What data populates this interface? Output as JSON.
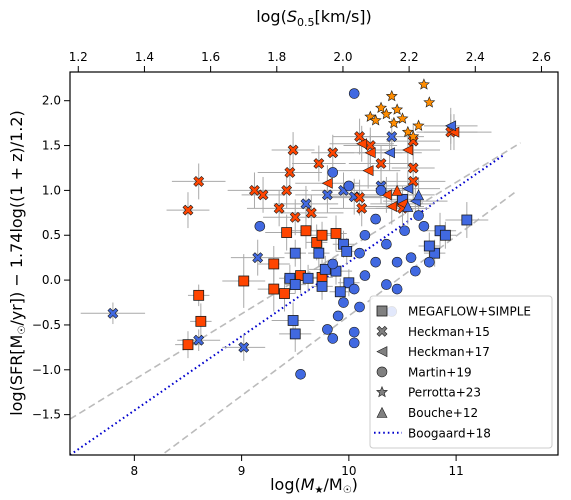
{
  "chart_data": {
    "type": "scatter",
    "title": "",
    "xlabel": "log(M★/M⊙)",
    "ylabel": "log(SFR[M⊙/yr]) − 1.74log((1 + z)/1.2)",
    "top_xlabel": "log(S0.5[km/s])",
    "xlim": [
      7.4,
      11.95
    ],
    "ylim": [
      -1.95,
      2.32
    ],
    "top_xlim": [
      1.175,
      2.65
    ],
    "x_ticks": [
      "8",
      "9",
      "10",
      "11"
    ],
    "top_x_ticks": [
      "1.2",
      "1.4",
      "1.6",
      "1.8",
      "2.0",
      "2.2",
      "2.4",
      "2.6"
    ],
    "y_ticks": [
      "−1.5",
      "−1.0",
      "−0.5",
      "0.0",
      "0.5",
      "1.0",
      "1.5",
      "2.0"
    ],
    "legend_position": "lower right",
    "colors": {
      "blue": "#4169e1",
      "red": "#ff4500",
      "orange": "#ff8c00",
      "errorbar": "#a9a9a9",
      "line_gray": "#bbbbbb",
      "line_blue": "#0000cd"
    },
    "lines": [
      {
        "name": "Boogaard+18",
        "style": "dotted",
        "x": [
          7.4,
          11.45
        ],
        "y": [
          -1.95,
          1.4
        ]
      },
      {
        "name": "",
        "style": "dashed",
        "x": [
          7.4,
          11.6
        ],
        "y": [
          -1.55,
          1.53
        ]
      },
      {
        "name": "",
        "style": "dashed",
        "x": [
          8.2,
          11.55
        ],
        "y": [
          -2.0,
          0.98
        ]
      }
    ],
    "series": [
      {
        "name": "MEGAFLOW+SIMPLE",
        "marker": "square",
        "points": [
          {
            "x": 8.5,
            "y": -0.72,
            "c": "red",
            "xe": 0.12,
            "ye": 0.15
          },
          {
            "x": 8.6,
            "y": -0.17,
            "c": "red",
            "xe": 0.1,
            "ye": 0.12
          },
          {
            "x": 8.62,
            "y": -0.46,
            "c": "red",
            "xe": 0.1,
            "ye": 0.2
          },
          {
            "x": 9.02,
            "y": -0.01,
            "c": "red",
            "xe": 0.2,
            "ye": 0.3
          },
          {
            "x": 9.3,
            "y": -0.1,
            "c": "red",
            "xe": 0.15,
            "ye": 0.25
          },
          {
            "x": 9.4,
            "y": -0.15,
            "c": "red",
            "xe": 0.1,
            "ye": 0.2
          },
          {
            "x": 9.3,
            "y": 0.18,
            "c": "red",
            "xe": 0.15,
            "ye": 0.2
          },
          {
            "x": 9.42,
            "y": 0.53,
            "c": "red",
            "xe": 0.2,
            "ye": 0.2
          },
          {
            "x": 9.6,
            "y": 0.55,
            "c": "red",
            "xe": 0.2,
            "ye": 0.2
          },
          {
            "x": 9.55,
            "y": 0.05,
            "c": "red",
            "xe": 0.1,
            "ye": 0.2
          },
          {
            "x": 9.7,
            "y": 0.42,
            "c": "red",
            "xe": 0.1,
            "ye": 0.2
          },
          {
            "x": 9.75,
            "y": 0.5,
            "c": "red",
            "xe": 0.1,
            "ye": 0.15
          },
          {
            "x": 9.75,
            "y": 0.03,
            "c": "red",
            "xe": 0.1,
            "ye": 0.2
          },
          {
            "x": 9.88,
            "y": 0.52,
            "c": "red",
            "xe": 0.1,
            "ye": 0.2
          },
          {
            "x": 9.48,
            "y": -0.45,
            "c": "blue",
            "xe": 0.2,
            "ye": 0.2
          },
          {
            "x": 9.5,
            "y": 0.3,
            "c": "blue",
            "xe": 0.1,
            "ye": 0.15
          },
          {
            "x": 9.45,
            "y": 0.02,
            "c": "blue",
            "xe": 0.1,
            "ye": 0.15
          },
          {
            "x": 9.5,
            "y": -0.05,
            "c": "blue",
            "xe": 0.1,
            "ye": 0.1
          },
          {
            "x": 9.62,
            "y": 0.02,
            "c": "blue",
            "xe": 0.1,
            "ye": 0.15
          },
          {
            "x": 9.72,
            "y": 0.3,
            "c": "blue",
            "xe": 0.1,
            "ye": 0.15
          },
          {
            "x": 9.78,
            "y": 0.12,
            "c": "blue",
            "xe": 0.15,
            "ye": 0.15
          },
          {
            "x": 9.88,
            "y": 0.1,
            "c": "blue",
            "xe": 0.15,
            "ye": 0.15
          },
          {
            "x": 9.95,
            "y": 0.4,
            "c": "blue",
            "xe": 0.1,
            "ye": 0.15
          },
          {
            "x": 9.98,
            "y": 0.32,
            "c": "blue",
            "xe": 0.1,
            "ye": 0.15
          },
          {
            "x": 9.75,
            "y": -0.07,
            "c": "blue",
            "xe": 0.1,
            "ye": 0.15
          },
          {
            "x": 10.0,
            "y": -0.03,
            "c": "blue",
            "xe": 0.1,
            "ye": 0.15
          },
          {
            "x": 9.92,
            "y": -0.13,
            "c": "blue",
            "xe": 0.1,
            "ye": 0.15
          },
          {
            "x": 9.5,
            "y": -0.6,
            "c": "blue",
            "xe": 0.15,
            "ye": 0.2
          },
          {
            "x": 10.5,
            "y": 0.9,
            "c": "blue",
            "xe": 0.1,
            "ye": 0.15
          },
          {
            "x": 10.8,
            "y": 0.3,
            "c": "blue",
            "xe": 0.1,
            "ye": 0.15
          },
          {
            "x": 10.75,
            "y": 0.38,
            "c": "blue",
            "xe": 0.1,
            "ye": 0.15
          },
          {
            "x": 10.85,
            "y": 0.55,
            "c": "blue",
            "xe": 0.15,
            "ye": 0.2
          },
          {
            "x": 10.9,
            "y": 0.5,
            "c": "blue",
            "xe": 0.1,
            "ye": 0.15
          },
          {
            "x": 11.1,
            "y": 0.67,
            "c": "blue",
            "xe": 0.2,
            "ye": 0.2
          }
        ]
      },
      {
        "name": "Heckman+15",
        "marker": "x",
        "points": [
          {
            "x": 7.8,
            "y": -0.37,
            "c": "blue",
            "xe": 0.3,
            "ye": 0.12
          },
          {
            "x": 8.6,
            "y": -0.67,
            "c": "blue",
            "xe": 0.2,
            "ye": 0.12
          },
          {
            "x": 9.02,
            "y": -0.75,
            "c": "blue",
            "xe": 0.2,
            "ye": 0.15
          },
          {
            "x": 8.6,
            "y": 1.1,
            "c": "red",
            "xe": 0.25,
            "ye": 0.2
          },
          {
            "x": 8.5,
            "y": 0.78,
            "c": "red",
            "xe": 0.2,
            "ye": 0.2
          },
          {
            "x": 9.12,
            "y": 1.0,
            "c": "red",
            "xe": 0.25,
            "ye": 0.2
          },
          {
            "x": 9.15,
            "y": 0.25,
            "c": "blue",
            "xe": 0.25,
            "ye": 0.2
          },
          {
            "x": 9.2,
            "y": 0.95,
            "c": "red",
            "xe": 0.2,
            "ye": 0.2
          },
          {
            "x": 9.35,
            "y": 0.8,
            "c": "red",
            "xe": 0.3,
            "ye": 0.2
          },
          {
            "x": 9.42,
            "y": 1.0,
            "c": "red",
            "xe": 0.2,
            "ye": 0.2
          },
          {
            "x": 9.45,
            "y": 1.2,
            "c": "red",
            "xe": 0.3,
            "ye": 0.2
          },
          {
            "x": 9.5,
            "y": 0.7,
            "c": "red",
            "xe": 0.3,
            "ye": 0.2
          },
          {
            "x": 9.48,
            "y": 1.45,
            "c": "red",
            "xe": 0.2,
            "ye": 0.2
          },
          {
            "x": 9.6,
            "y": 0.85,
            "c": "blue",
            "xe": 0.3,
            "ye": 0.2
          },
          {
            "x": 9.65,
            "y": 0.75,
            "c": "red",
            "xe": 0.3,
            "ye": 0.2
          },
          {
            "x": 9.72,
            "y": 1.3,
            "c": "red",
            "xe": 0.25,
            "ye": 0.2
          },
          {
            "x": 9.8,
            "y": 0.95,
            "c": "blue",
            "xe": 0.3,
            "ye": 0.2
          },
          {
            "x": 9.85,
            "y": 1.42,
            "c": "red",
            "xe": 0.2,
            "ye": 0.2
          },
          {
            "x": 9.95,
            "y": 1.0,
            "c": "blue",
            "xe": 0.3,
            "ye": 0.2
          },
          {
            "x": 10.05,
            "y": 0.93,
            "c": "blue",
            "xe": 0.25,
            "ye": 0.2
          },
          {
            "x": 10.1,
            "y": 1.6,
            "c": "red",
            "xe": 0.25,
            "ye": 0.2
          },
          {
            "x": 10.12,
            "y": 0.8,
            "c": "red",
            "xe": 0.3,
            "ye": 0.2
          },
          {
            "x": 10.2,
            "y": 1.5,
            "c": "red",
            "xe": 0.25,
            "ye": 0.2
          },
          {
            "x": 10.3,
            "y": 1.3,
            "c": "red",
            "xe": 0.3,
            "ye": 0.2
          },
          {
            "x": 10.3,
            "y": 1.05,
            "c": "blue",
            "xe": 0.3,
            "ye": 0.2
          },
          {
            "x": 10.4,
            "y": 1.6,
            "c": "blue",
            "xe": 0.3,
            "ye": 0.2
          },
          {
            "x": 10.5,
            "y": 0.8,
            "c": "red",
            "xe": 0.25,
            "ye": 0.2
          },
          {
            "x": 10.6,
            "y": 1.1,
            "c": "red",
            "xe": 0.3,
            "ye": 0.2
          },
          {
            "x": 10.6,
            "y": 1.55,
            "c": "red",
            "xe": 0.25,
            "ye": 0.2
          },
          {
            "x": 10.6,
            "y": 1.25,
            "c": "red",
            "xe": 0.2,
            "ye": 0.2
          },
          {
            "x": 10.95,
            "y": 1.65,
            "c": "red",
            "xe": 0.25,
            "ye": 0.2
          },
          {
            "x": 10.1,
            "y": 0.92,
            "c": "red",
            "xe": 0.25,
            "ye": 0.2
          }
        ]
      },
      {
        "name": "Heckman+17",
        "marker": "triangle-left",
        "points": [
          {
            "x": 9.8,
            "y": 1.08,
            "c": "red",
            "xe": 0.3,
            "ye": 0.2
          },
          {
            "x": 10.12,
            "y": 1.52,
            "c": "red",
            "xe": 0.3,
            "ye": 0.2
          },
          {
            "x": 10.2,
            "y": 1.42,
            "c": "red",
            "xe": 0.3,
            "ye": 0.2
          },
          {
            "x": 10.18,
            "y": 1.22,
            "c": "red",
            "xe": 0.3,
            "ye": 0.2
          },
          {
            "x": 10.35,
            "y": 0.95,
            "c": "red",
            "xe": 0.3,
            "ye": 0.2
          },
          {
            "x": 10.4,
            "y": 0.82,
            "c": "red",
            "xe": 0.3,
            "ye": 0.2
          },
          {
            "x": 10.38,
            "y": 1.42,
            "c": "blue",
            "xe": 0.3,
            "ye": 0.2
          },
          {
            "x": 10.5,
            "y": 0.85,
            "c": "red",
            "xe": 0.3,
            "ye": 0.2
          },
          {
            "x": 10.55,
            "y": 1.45,
            "c": "red",
            "xe": 0.3,
            "ye": 0.2
          },
          {
            "x": 10.55,
            "y": 1.02,
            "c": "blue",
            "xe": 0.3,
            "ye": 0.2
          },
          {
            "x": 10.62,
            "y": 0.88,
            "c": "blue",
            "xe": 0.3,
            "ye": 0.2
          },
          {
            "x": 10.98,
            "y": 1.65,
            "c": "red",
            "xe": 0.35,
            "ye": 0.2
          },
          {
            "x": 10.95,
            "y": 1.72,
            "c": "blue",
            "xe": 0.25,
            "ye": 0.2
          }
        ]
      },
      {
        "name": "Martin+19",
        "marker": "circle",
        "points": [
          {
            "x": 9.17,
            "y": 0.6,
            "c": "blue"
          },
          {
            "x": 9.55,
            "y": -1.05,
            "c": "blue"
          },
          {
            "x": 9.8,
            "y": -0.55,
            "c": "blue"
          },
          {
            "x": 9.85,
            "y": -0.65,
            "c": "blue"
          },
          {
            "x": 9.9,
            "y": -0.4,
            "c": "blue"
          },
          {
            "x": 9.95,
            "y": -0.25,
            "c": "blue"
          },
          {
            "x": 10.05,
            "y": -0.7,
            "c": "blue"
          },
          {
            "x": 10.05,
            "y": -0.58,
            "c": "blue"
          },
          {
            "x": 10.05,
            "y": -0.1,
            "c": "blue"
          },
          {
            "x": 10.1,
            "y": -0.3,
            "c": "blue"
          },
          {
            "x": 10.15,
            "y": 0.05,
            "c": "blue"
          },
          {
            "x": 10.1,
            "y": 0.3,
            "c": "blue"
          },
          {
            "x": 10.15,
            "y": 0.5,
            "c": "blue"
          },
          {
            "x": 10.25,
            "y": 0.2,
            "c": "blue"
          },
          {
            "x": 10.25,
            "y": 0.68,
            "c": "blue"
          },
          {
            "x": 10.3,
            "y": 1.0,
            "c": "blue"
          },
          {
            "x": 10.35,
            "y": 0.4,
            "c": "blue"
          },
          {
            "x": 10.35,
            "y": -0.05,
            "c": "blue"
          },
          {
            "x": 10.45,
            "y": 0.2,
            "c": "blue"
          },
          {
            "x": 10.52,
            "y": 0.55,
            "c": "blue"
          },
          {
            "x": 10.58,
            "y": 0.25,
            "c": "blue"
          },
          {
            "x": 10.62,
            "y": 0.1,
            "c": "blue"
          },
          {
            "x": 10.65,
            "y": 0.72,
            "c": "blue"
          },
          {
            "x": 10.7,
            "y": 0.6,
            "c": "blue"
          },
          {
            "x": 10.75,
            "y": 0.2,
            "c": "blue"
          },
          {
            "x": 10.45,
            "y": -0.1,
            "c": "blue"
          },
          {
            "x": 10.05,
            "y": 2.08,
            "c": "blue"
          },
          {
            "x": 9.85,
            "y": 1.2,
            "c": "blue"
          },
          {
            "x": 10.0,
            "y": 1.05,
            "c": "blue"
          },
          {
            "x": 9.85,
            "y": 0.18,
            "c": "blue"
          },
          {
            "x": 10.4,
            "y": -0.35,
            "c": "blue"
          }
        ]
      },
      {
        "name": "Perrotta+23",
        "marker": "star",
        "points": [
          {
            "x": 10.2,
            "y": 1.82,
            "c": "orange"
          },
          {
            "x": 10.25,
            "y": 1.78,
            "c": "orange"
          },
          {
            "x": 10.3,
            "y": 1.92,
            "c": "orange"
          },
          {
            "x": 10.35,
            "y": 1.85,
            "c": "orange"
          },
          {
            "x": 10.4,
            "y": 2.05,
            "c": "orange"
          },
          {
            "x": 10.42,
            "y": 1.75,
            "c": "orange"
          },
          {
            "x": 10.45,
            "y": 1.9,
            "c": "orange"
          },
          {
            "x": 10.5,
            "y": 1.8,
            "c": "orange"
          },
          {
            "x": 10.55,
            "y": 1.65,
            "c": "orange"
          },
          {
            "x": 10.65,
            "y": 1.72,
            "c": "orange"
          },
          {
            "x": 10.7,
            "y": 2.18,
            "c": "orange"
          },
          {
            "x": 10.75,
            "y": 1.98,
            "c": "orange"
          },
          {
            "x": 10.6,
            "y": 1.6,
            "c": "orange"
          }
        ]
      },
      {
        "name": "Bouche+12",
        "marker": "triangle-up",
        "points": [
          {
            "x": 10.45,
            "y": 1.0,
            "c": "red",
            "xe": 0.15,
            "ye": 0.2
          },
          {
            "x": 10.65,
            "y": 0.95,
            "c": "blue",
            "xe": 0.15,
            "ye": 0.2
          },
          {
            "x": 10.55,
            "y": 0.82,
            "c": "blue",
            "xe": 0.15,
            "ye": 0.2
          }
        ]
      }
    ],
    "legend": [
      {
        "label": "MEGAFLOW+SIMPLE",
        "marker": "square"
      },
      {
        "label": "Heckman+15",
        "marker": "x"
      },
      {
        "label": "Heckman+17",
        "marker": "triangle-left"
      },
      {
        "label": "Martin+19",
        "marker": "circle"
      },
      {
        "label": "Perrotta+23",
        "marker": "star"
      },
      {
        "label": "Bouche+12",
        "marker": "triangle-up"
      },
      {
        "label": "Boogaard+18",
        "marker": "dotted-line"
      }
    ]
  }
}
